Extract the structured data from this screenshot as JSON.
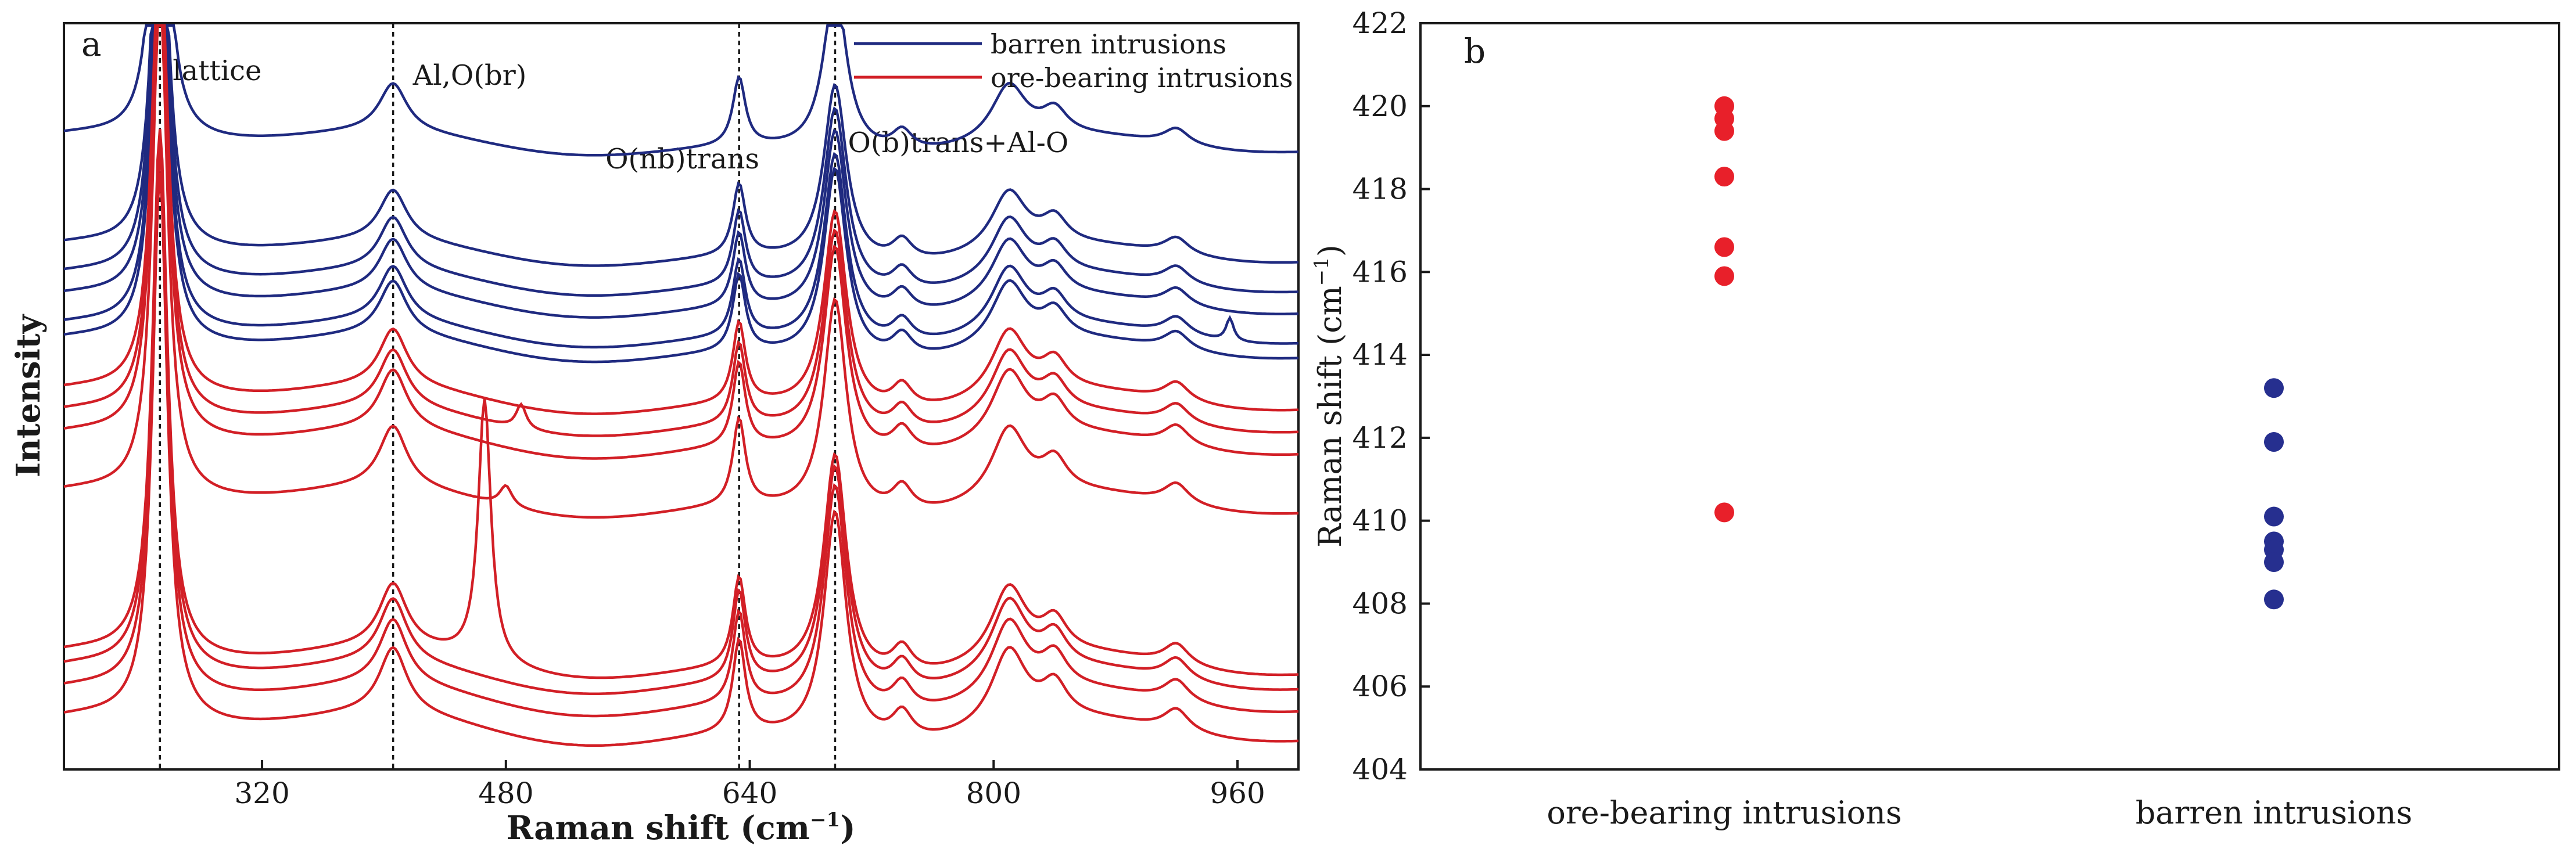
{
  "chart_data": [
    {
      "type": "line",
      "panel_label": "a",
      "xlabel": "Raman shift (cm",
      "xlabel_sup": "−1",
      "xlabel_tail": ")",
      "ylabel": "Intensity",
      "xlim": [
        190,
        1000
      ],
      "xticks": [
        320,
        480,
        640,
        800,
        960
      ],
      "grid": false,
      "legend": {
        "position": "top-right",
        "entries": [
          {
            "label": "barren intrusions",
            "color": "#1f2a80"
          },
          {
            "label": "ore-bearing intrusions",
            "color": "#d21f26"
          }
        ]
      },
      "reference_lines": [
        {
          "x": 253,
          "label": "lattice"
        },
        {
          "x": 406,
          "label": "Al,O(br)"
        },
        {
          "x": 633,
          "label": "O(nb)trans"
        },
        {
          "x": 696,
          "label": "O(b)trans+Al-O"
        }
      ],
      "peak_model": [
        {
          "x": 253,
          "width": 6,
          "amp": 1.0
        },
        {
          "x": 406,
          "width": 11,
          "amp": 0.12
        },
        {
          "x": 633,
          "width": 5,
          "amp": 0.17
        },
        {
          "x": 696,
          "width": 9,
          "amp": 0.42
        },
        {
          "x": 810,
          "width": 14,
          "amp": 0.14
        },
        {
          "x": 840,
          "width": 10,
          "amp": 0.06
        },
        {
          "x": 740,
          "width": 8,
          "amp": 0.05
        },
        {
          "x": 920,
          "width": 10,
          "amp": 0.04
        }
      ],
      "series": [
        {
          "name": "barren intrusions",
          "color": "#1f2a80",
          "offset": 0.82,
          "scale": 0.55,
          "extra": []
        },
        {
          "name": "barren intrusions",
          "color": "#1f2a80",
          "offset": 0.67,
          "scale": 0.58,
          "extra": []
        },
        {
          "name": "barren intrusions",
          "color": "#1f2a80",
          "offset": 0.63,
          "scale": 0.6,
          "extra": []
        },
        {
          "name": "barren intrusions",
          "color": "#1f2a80",
          "offset": 0.6,
          "scale": 0.6,
          "extra": []
        },
        {
          "name": "barren intrusions",
          "color": "#1f2a80",
          "offset": 0.56,
          "scale": 0.62,
          "extra": [
            {
              "x": 955,
              "width": 3,
              "amp": 0.05
            }
          ]
        },
        {
          "name": "barren intrusions",
          "color": "#1f2a80",
          "offset": 0.54,
          "scale": 0.62,
          "extra": []
        },
        {
          "name": "ore-bearing intrusions",
          "color": "#d21f26",
          "offset": 0.47,
          "scale": 0.65,
          "extra": []
        },
        {
          "name": "ore-bearing intrusions",
          "color": "#d21f26",
          "offset": 0.44,
          "scale": 0.66,
          "extra": [
            {
              "x": 490,
              "width": 4,
              "amp": 0.05
            }
          ]
        },
        {
          "name": "ore-bearing intrusions",
          "color": "#d21f26",
          "offset": 0.41,
          "scale": 0.68,
          "extra": []
        },
        {
          "name": "ore-bearing intrusions",
          "color": "#d21f26",
          "offset": 0.33,
          "scale": 0.7,
          "extra": [
            {
              "x": 480,
              "width": 5,
              "amp": 0.04
            }
          ]
        },
        {
          "name": "ore-bearing intrusions",
          "color": "#d21f26",
          "offset": 0.11,
          "scale": 0.72,
          "extra": [
            {
              "x": 466,
              "width": 5,
              "amp": 0.5
            }
          ]
        },
        {
          "name": "ore-bearing intrusions",
          "color": "#d21f26",
          "offset": 0.09,
          "scale": 0.73,
          "extra": []
        },
        {
          "name": "ore-bearing intrusions",
          "color": "#d21f26",
          "offset": 0.06,
          "scale": 0.74,
          "extra": []
        },
        {
          "name": "ore-bearing intrusions",
          "color": "#d21f26",
          "offset": 0.02,
          "scale": 0.75,
          "extra": []
        }
      ]
    },
    {
      "type": "scatter",
      "panel_label": "b",
      "ylabel": "Raman shift (cm",
      "ylabel_sup": "−1",
      "ylabel_tail": ")",
      "ylim": [
        404,
        422
      ],
      "yticks": [
        404,
        406,
        408,
        410,
        412,
        414,
        416,
        418,
        420,
        422
      ],
      "categories": [
        "ore-bearing intrusions",
        "barren intrusions"
      ],
      "grid": false,
      "series": [
        {
          "name": "ore-bearing intrusions",
          "color": "#e8202a",
          "values": [
            420.0,
            419.7,
            419.4,
            418.3,
            416.6,
            415.9,
            410.2
          ]
        },
        {
          "name": "barren intrusions",
          "color": "#262f8f",
          "values": [
            413.2,
            411.9,
            410.1,
            409.5,
            409.3,
            409.0,
            408.1
          ]
        }
      ]
    }
  ]
}
